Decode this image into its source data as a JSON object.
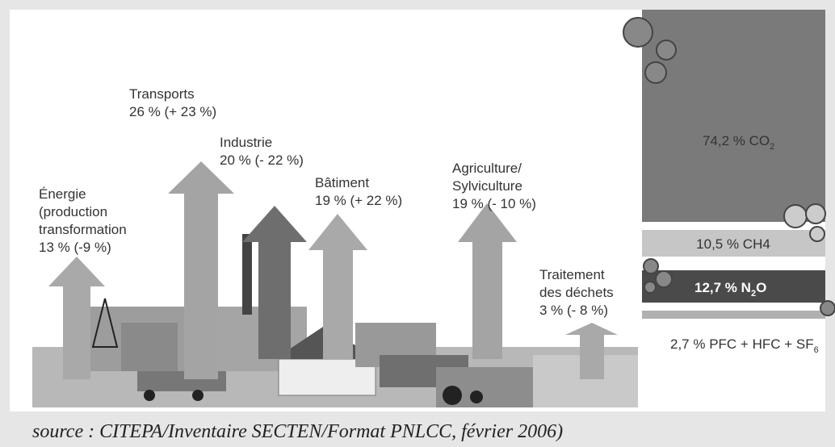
{
  "sectors": [
    {
      "lines": [
        "Énergie",
        "(production",
        "transformation",
        "13 % (-9 %)"
      ]
    },
    {
      "lines": [
        "Transports",
        "26 % (+ 23 %)"
      ]
    },
    {
      "lines": [
        "Industrie",
        "20 % (- 22 %)"
      ]
    },
    {
      "lines": [
        "Bâtiment",
        "19 % (+ 22 %)"
      ]
    },
    {
      "lines": [
        "Agriculture/",
        "Sylviculture",
        "19 % (- 10 %)"
      ]
    },
    {
      "lines": [
        "Traitement",
        "des déchets",
        "3 % (- 8 %)"
      ]
    }
  ],
  "gases": [
    {
      "text": "74,2 % CO",
      "sub": "2"
    },
    {
      "text": "10,5 % CH4"
    },
    {
      "text": "12,7 % N",
      "sub": "2",
      "after": "O"
    },
    {
      "text": "2,7 % PFC + HFC + SF",
      "sub": "6"
    }
  ],
  "source": "source : CITEPA/Inventaire SECTEN/Format PNLCC, février 2006)"
}
